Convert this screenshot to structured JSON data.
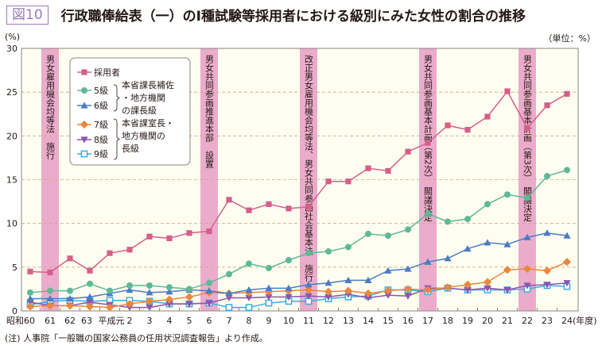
{
  "header": {
    "figure_label": "図10",
    "title": "行政職俸給表（一）のⅠ種試験等採用者における級別にみた女性の割合の推移",
    "y_unit": "(%)",
    "unit_note": "（単位：%）"
  },
  "note": "(注) 人事院「一般職の国家公務員の任用状況調査報告」より作成。",
  "chart_data": {
    "type": "line",
    "title": "行政職俸給表（一）のⅠ種試験等採用者における級別にみた女性の割合の推移",
    "ylabel": "(%)",
    "xlabel": "(年度)",
    "ylim": [
      0,
      30
    ],
    "yticks": [
      0,
      5,
      10,
      15,
      20,
      25,
      30
    ],
    "grid": "horizontal dashed",
    "legend_position": "top-left",
    "categories": [
      "昭和60",
      "61",
      "62",
      "63",
      "平成元",
      "2",
      "3",
      "4",
      "5",
      "6",
      "7",
      "8",
      "9",
      "10",
      "11",
      "12",
      "13",
      "14",
      "15",
      "16",
      "17",
      "18",
      "19",
      "20",
      "21",
      "22",
      "23",
      "24(年度)"
    ],
    "series": [
      {
        "name": "採用者",
        "color": "#d4608a",
        "marker": "square",
        "values": [
          4.5,
          4.4,
          6.0,
          4.6,
          6.6,
          7.0,
          8.5,
          8.3,
          8.9,
          9.1,
          12.7,
          11.5,
          12.2,
          11.7,
          11.9,
          14.8,
          14.8,
          16.3,
          16.0,
          18.2,
          19.2,
          21.2,
          20.7,
          22.2,
          25.1,
          20.9,
          23.5,
          24.8
        ]
      },
      {
        "name": "5級",
        "color": "#5fb896",
        "marker": "circle",
        "values": [
          2.1,
          2.3,
          2.3,
          3.1,
          2.3,
          2.9,
          2.9,
          2.7,
          2.5,
          3.2,
          4.2,
          5.4,
          4.9,
          5.8,
          6.6,
          6.8,
          7.3,
          8.8,
          8.6,
          9.3,
          11.1,
          10.2,
          10.5,
          12.2,
          13.3,
          12.9,
          15.4,
          16.1
        ]
      },
      {
        "name": "6級",
        "color": "#4a7cc4",
        "marker": "triangle-up",
        "values": [
          1.4,
          1.4,
          1.4,
          1.6,
          2.0,
          2.4,
          2.1,
          2.2,
          2.4,
          2.3,
          2.0,
          2.4,
          2.6,
          2.6,
          3.0,
          3.2,
          3.5,
          3.5,
          4.6,
          4.8,
          5.6,
          6.0,
          7.1,
          7.8,
          7.6,
          8.4,
          8.9,
          8.6
        ]
      },
      {
        "name": "7級",
        "color": "#e8883a",
        "marker": "diamond",
        "values": [
          0.5,
          0.6,
          0.6,
          0.5,
          0.4,
          0.8,
          1.1,
          1.3,
          1.6,
          2.1,
          2.0,
          2.1,
          2.2,
          2.3,
          2.4,
          2.2,
          2.3,
          2.0,
          2.3,
          2.5,
          2.4,
          2.7,
          3.0,
          3.3,
          4.7,
          4.8,
          4.6,
          5.6
        ]
      },
      {
        "name": "8級",
        "color": "#8a55b0",
        "marker": "triangle-down",
        "values": [
          1.0,
          0.6,
          0.6,
          1.0,
          0.7,
          0.4,
          0.4,
          0.8,
          0.8,
          0.9,
          1.5,
          1.5,
          1.6,
          1.6,
          1.7,
          1.6,
          1.9,
          1.5,
          1.8,
          1.7,
          2.6,
          2.6,
          2.4,
          2.6,
          2.4,
          2.9,
          3.0,
          3.2
        ]
      },
      {
        "name": "9級",
        "color": "#3aace0",
        "marker": "hollow-square",
        "values": [
          0.7,
          1.1,
          1.2,
          1.1,
          1.2,
          1.2,
          1.1,
          0.8,
          0.8,
          0.9,
          0.4,
          0.4,
          0.9,
          1.1,
          1.1,
          1.4,
          1.6,
          1.7,
          2.4,
          2.4,
          2.2,
          2.6,
          2.4,
          2.4,
          2.4,
          2.5,
          2.9,
          2.8
        ]
      }
    ],
    "legend_groups": [
      {
        "members": [
          "5級",
          "6級"
        ],
        "label": "本省課長補佐・地方機関の課長級"
      },
      {
        "members": [
          "7級",
          "8級",
          "9級"
        ],
        "label": "本省課室長・地方機関の長級"
      }
    ],
    "annotations": [
      {
        "category": "61",
        "text": "男女雇用機会均等法　施行"
      },
      {
        "category": "6",
        "text": "男女共同参画推進本部　設置"
      },
      {
        "category": "11",
        "text": "改正男女雇用機会均等法、男女共同参画社会基本法　施行"
      },
      {
        "category": "17",
        "text": "男女共同参画基本計画（第2次）　閣議決定"
      },
      {
        "category": "22",
        "text": "男女共同参画基本計画（第3次）　閣議決定"
      }
    ],
    "colors": {
      "background": "#fffdf0",
      "annotation_band": "#ebaccb",
      "grid": "#c9a98a"
    }
  }
}
